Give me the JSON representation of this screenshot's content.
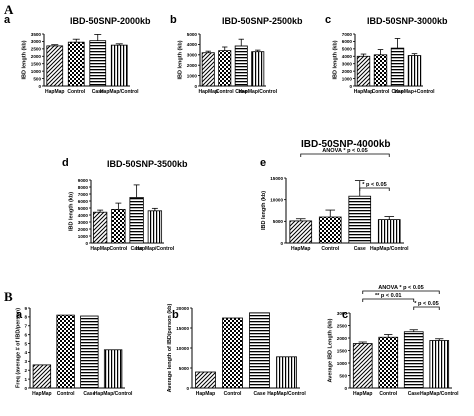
{
  "section_labels": {
    "A": "A",
    "B": "B"
  },
  "chart_data": [
    {
      "id": "Aa",
      "panel_label": "a",
      "type": "bar",
      "title": "IBD-50SNP-2000kb",
      "ylabel": "IBD length (kb)",
      "categories": [
        "HapMap",
        "Control",
        "Case",
        "HapMap/Control"
      ],
      "values": [
        2700,
        2950,
        3050,
        2750
      ],
      "errors": [
        80,
        200,
        420,
        90
      ],
      "ylim": [
        0,
        3500
      ],
      "yticks": [
        0,
        500,
        1000,
        1500,
        2000,
        2500,
        3000,
        3500
      ],
      "annotations": []
    },
    {
      "id": "Ab",
      "panel_label": "b",
      "type": "bar",
      "title": "IBD-50SNP-2500kb",
      "ylabel": "IBD length (kb)",
      "categories": [
        "HapMap",
        "Control",
        "Case",
        "HapMap/Control"
      ],
      "values": [
        3200,
        3400,
        3850,
        3300
      ],
      "errors": [
        150,
        350,
        650,
        150
      ],
      "ylim": [
        0,
        5000
      ],
      "yticks": [
        0,
        1000,
        2000,
        3000,
        4000,
        5000
      ],
      "annotations": []
    },
    {
      "id": "Ac",
      "panel_label": "c",
      "type": "bar",
      "title": "IBD-50SNP-3000kb",
      "ylabel": "IBD length (kb)",
      "categories": [
        "HapMap",
        "Control",
        "Case",
        "HapMap+Control"
      ],
      "values": [
        4000,
        4200,
        5100,
        4100
      ],
      "errors": [
        300,
        700,
        1300,
        250
      ],
      "ylim": [
        0,
        7000
      ],
      "yticks": [
        0,
        1000,
        2000,
        3000,
        4000,
        5000,
        6000,
        7000
      ],
      "annotations": []
    },
    {
      "id": "Ad",
      "panel_label": "d",
      "type": "bar",
      "title": "IBD-50SNP-3500kb",
      "ylabel": "IBD length (kb)",
      "categories": [
        "HapMap",
        "Control",
        "Case",
        "HapMap/Control"
      ],
      "values": [
        4400,
        4800,
        6500,
        4600
      ],
      "errors": [
        300,
        900,
        1800,
        350
      ],
      "ylim": [
        0,
        9000
      ],
      "yticks": [
        0,
        1000,
        2000,
        3000,
        4000,
        5000,
        6000,
        7000,
        8000,
        9000
      ],
      "annotations": []
    },
    {
      "id": "Ae",
      "panel_label": "e",
      "type": "bar",
      "title": "IBD-50SNP-4000kb",
      "ylabel": "IBD length (kb)",
      "categories": [
        "HapMap",
        "Control",
        "Case",
        "HapMap/Control"
      ],
      "values": [
        5100,
        6000,
        10800,
        5400
      ],
      "errors": [
        500,
        1600,
        3600,
        700
      ],
      "ylim": [
        0,
        15000
      ],
      "yticks": [
        0,
        5000,
        10000,
        15000
      ],
      "annotations": [
        {
          "text": "ANOVA * p < 0.05",
          "from": 0,
          "to": 3,
          "level": 0
        },
        {
          "text": "* p < 0.05",
          "from": 2,
          "to": 3,
          "level": 1
        }
      ]
    },
    {
      "id": "Ba",
      "panel_label": "a",
      "type": "bar",
      "title": "",
      "ylabel": "Freq (average # of IBD/person)",
      "categories": [
        "HapMap",
        "Control",
        "Case",
        "HapMap/Control"
      ],
      "values": [
        2.6,
        8.2,
        8.1,
        4.3
      ],
      "errors": null,
      "ylim": [
        0,
        9
      ],
      "yticks": [
        0,
        1,
        2,
        3,
        4,
        5,
        6,
        7,
        8,
        9
      ],
      "annotations": []
    },
    {
      "id": "Bb",
      "panel_label": "b",
      "type": "bar",
      "title": "",
      "ylabel": "Average length of IBD/person (kb)",
      "categories": [
        "HapMap",
        "Control",
        "Case",
        "HapMap/Control"
      ],
      "values": [
        4000,
        17500,
        18800,
        7800
      ],
      "errors": null,
      "ylim": [
        0,
        20000
      ],
      "yticks": [
        0,
        5000,
        10000,
        15000,
        20000
      ],
      "annotations": []
    },
    {
      "id": "Bc",
      "panel_label": "c",
      "type": "bar",
      "title": "",
      "ylabel": "Average IBD Length (kb)",
      "categories": [
        "HapMap",
        "Control",
        "Case",
        "HapMap/Control"
      ],
      "values": [
        1780,
        2030,
        2250,
        1900
      ],
      "errors": [
        60,
        110,
        80,
        70
      ],
      "ylim": [
        0,
        3000
      ],
      "yticks": [
        0,
        500,
        1000,
        1500,
        2000,
        2500,
        3000
      ],
      "annotations": [
        {
          "text": "ANOVA * p < 0.05",
          "from": 0,
          "to": 3,
          "level": 0
        },
        {
          "text": "** p < 0.01",
          "from": 0,
          "to": 2,
          "level": 1
        },
        {
          "text": "* p < 0.05",
          "from": 2,
          "to": 3,
          "level": 2
        }
      ]
    }
  ]
}
